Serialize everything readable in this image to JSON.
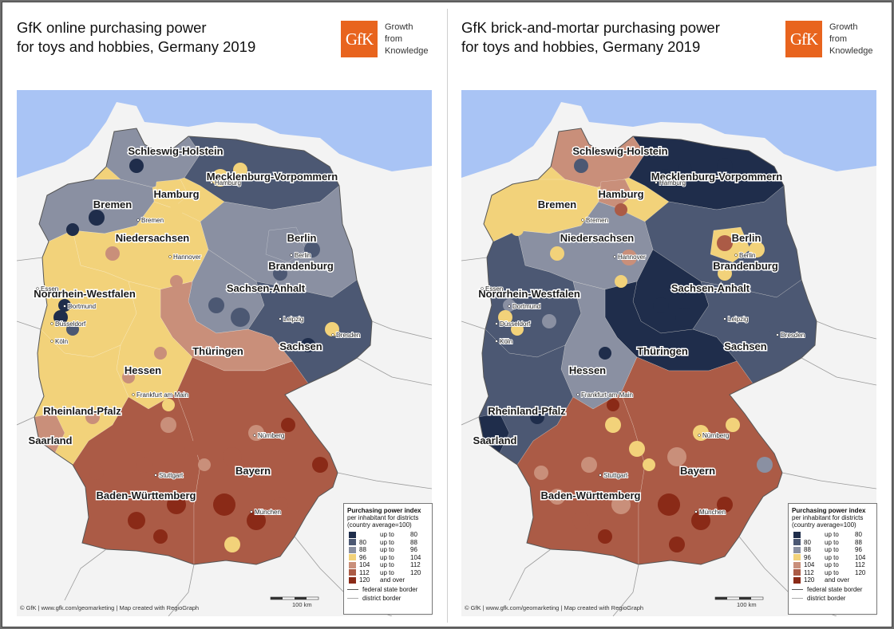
{
  "left": {
    "title_line1": "GfK online purchasing power",
    "title_line2": "for toys and hobbies, Germany 2019"
  },
  "right": {
    "title_line1": "GfK brick-and-mortar purchasing power",
    "title_line2": "for toys and hobbies, Germany 2019"
  },
  "logo": {
    "text": "GfK",
    "tagline1": "Growth",
    "tagline2": "from",
    "tagline3": "Knowledge",
    "color": "#e8641e"
  },
  "states": {
    "sh": "Schleswig-Holstein",
    "mv": "Mecklenburg-Vorpommern",
    "hh": "Hamburg",
    "hb": "Bremen",
    "ni": "Niedersachsen",
    "be": "Berlin",
    "bb": "Brandenburg",
    "nw": "Nordrhein-Westfalen",
    "st": "Sachsen-Anhalt",
    "sn": "Sachsen",
    "th": "Thüringen",
    "he": "Hessen",
    "rp": "Rheinland-Pfalz",
    "sl": "Saarland",
    "by": "Bayern",
    "bw": "Baden-Württemberg"
  },
  "cities": {
    "hamburg": "Hamburg",
    "bremen": "Bremen",
    "hannover": "Hannover",
    "berlin": "Berlin",
    "essen": "Essen",
    "dortmund": "Dortmund",
    "duesseldorf": "Düsseldorf",
    "koeln": "Köln",
    "leipzig": "Leipzig",
    "dresden": "Dresden",
    "frankfurt": "Frankfurt am Main",
    "nuernberg": "Nürnberg",
    "stuttgart": "Stuttgart",
    "muenchen": "München"
  },
  "legend": {
    "title": "Purchasing power index",
    "subtitle1": "per inhabitant for districts",
    "subtitle2": "(country average=100)",
    "classes": [
      {
        "from": "",
        "upto": "up to",
        "to": "80",
        "color": "#1f2d4b"
      },
      {
        "from": "80",
        "upto": "up to",
        "to": "88",
        "color": "#4c5873"
      },
      {
        "from": "88",
        "upto": "up to",
        "to": "96",
        "color": "#8a90a2"
      },
      {
        "from": "96",
        "upto": "up to",
        "to": "104",
        "color": "#f2d27a"
      },
      {
        "from": "104",
        "upto": "up to",
        "to": "112",
        "color": "#c98f7a"
      },
      {
        "from": "112",
        "upto": "up to",
        "to": "120",
        "color": "#ab5b46"
      },
      {
        "from": "120",
        "upto": "and over",
        "to": "",
        "color": "#8a2a17"
      }
    ],
    "federal_border": "federal state border",
    "district_border": "district border"
  },
  "scale_label": "100 km",
  "credit": "© GfK | www.gfk.com/geomarketing | Map created with RegioGraph",
  "colors": {
    "sea": "#a9c4f5",
    "neighbour": "#f3f3f3"
  }
}
